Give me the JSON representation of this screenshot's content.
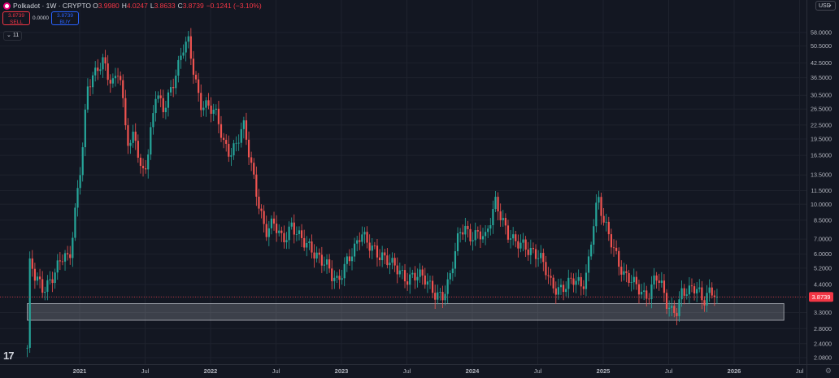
{
  "header": {
    "symbol": "Polkadot · 1W · CRYPTO",
    "o_label": "O",
    "o": "3.9980",
    "h_label": "H",
    "h": "4.0247",
    "l_label": "L",
    "l": "3.8633",
    "c_label": "C",
    "c": "3.8739",
    "change": "−0.1241 (−3.10%)"
  },
  "trade": {
    "sell_price": "3.8739",
    "sell_label": "SELL",
    "spread": "0.0000",
    "buy_price": "3.8739",
    "buy_label": "BUY"
  },
  "indicator_toggle": "11",
  "currency": "USD",
  "logo_text": "17",
  "colors": {
    "background": "#131722",
    "up": "#26a69a",
    "down": "#ef5350",
    "price_badge": "#f23645",
    "zone_fill": "#d1d4dc"
  },
  "chart_data": {
    "type": "candlestick",
    "scale": "log",
    "grid": true,
    "price_axis_ticks": [
      58.0,
      50.5,
      42.5,
      36.5,
      30.5,
      26.5,
      22.5,
      19.5,
      16.5,
      13.5,
      11.5,
      10.0,
      8.5,
      7.0,
      6.0,
      5.2,
      4.4,
      3.8739,
      3.3,
      2.8,
      2.4,
      2.08
    ],
    "price_axis_labels": [
      "58.0000",
      "50.5000",
      "42.5000",
      "36.5000",
      "30.5000",
      "26.5000",
      "22.5000",
      "19.5000",
      "16.5000",
      "13.5000",
      "11.5000",
      "10.0000",
      "8.5000",
      "7.0000",
      "6.0000",
      "5.2000",
      "4.4000",
      "3.8739",
      "3.3000",
      "2.8000",
      "2.4000",
      "2.0800"
    ],
    "current_price": "3.8739",
    "time_axis": [
      {
        "label": "2021",
        "t": 2021.0
      },
      {
        "label": "Jul",
        "t": 2021.5
      },
      {
        "label": "2022",
        "t": 2022.0
      },
      {
        "label": "Jul",
        "t": 2022.5
      },
      {
        "label": "2023",
        "t": 2023.0
      },
      {
        "label": "Jul",
        "t": 2023.5
      },
      {
        "label": "2024",
        "t": 2024.0
      },
      {
        "label": "Jul",
        "t": 2024.5
      },
      {
        "label": "2025",
        "t": 2025.0
      },
      {
        "label": "Jul",
        "t": 2025.5
      },
      {
        "label": "2026",
        "t": 2026.0
      },
      {
        "label": "Jul",
        "t": 2026.5
      }
    ],
    "close_path": [
      [
        2020.6,
        2.3
      ],
      [
        2020.62,
        5.5
      ],
      [
        2020.66,
        4.6
      ],
      [
        2020.72,
        4.2
      ],
      [
        2020.8,
        5.0
      ],
      [
        2020.88,
        5.8
      ],
      [
        2020.92,
        5.4
      ],
      [
        2020.97,
        10.0
      ],
      [
        2021.02,
        18.0
      ],
      [
        2021.06,
        33.0
      ],
      [
        2021.12,
        37.0
      ],
      [
        2021.18,
        44.0
      ],
      [
        2021.25,
        35.0
      ],
      [
        2021.3,
        40.0
      ],
      [
        2021.34,
        24.0
      ],
      [
        2021.38,
        17.0
      ],
      [
        2021.42,
        22.0
      ],
      [
        2021.47,
        14.0
      ],
      [
        2021.52,
        16.0
      ],
      [
        2021.58,
        30.0
      ],
      [
        2021.64,
        27.0
      ],
      [
        2021.7,
        34.0
      ],
      [
        2021.75,
        40.0
      ],
      [
        2021.79,
        48.0
      ],
      [
        2021.83,
        52.0
      ],
      [
        2021.87,
        40.0
      ],
      [
        2021.92,
        29.0
      ],
      [
        2021.98,
        27.0
      ],
      [
        2022.05,
        24.0
      ],
      [
        2022.1,
        19.0
      ],
      [
        2022.15,
        17.5
      ],
      [
        2022.2,
        18.5
      ],
      [
        2022.25,
        22.0
      ],
      [
        2022.3,
        16.0
      ],
      [
        2022.36,
        11.0
      ],
      [
        2022.42,
        7.5
      ],
      [
        2022.48,
        8.0
      ],
      [
        2022.55,
        7.0
      ],
      [
        2022.62,
        8.3
      ],
      [
        2022.68,
        7.0
      ],
      [
        2022.72,
        6.5
      ],
      [
        2022.78,
        6.3
      ],
      [
        2022.84,
        5.9
      ],
      [
        2022.88,
        5.5
      ],
      [
        2022.93,
        4.6
      ],
      [
        2022.97,
        4.4
      ],
      [
        2023.05,
        6.0
      ],
      [
        2023.1,
        6.4
      ],
      [
        2023.15,
        7.2
      ],
      [
        2023.2,
        6.6
      ],
      [
        2023.26,
        6.4
      ],
      [
        2023.32,
        5.9
      ],
      [
        2023.38,
        5.3
      ],
      [
        2023.44,
        5.0
      ],
      [
        2023.5,
        4.8
      ],
      [
        2023.55,
        4.9
      ],
      [
        2023.6,
        4.7
      ],
      [
        2023.66,
        4.4
      ],
      [
        2023.72,
        4.1
      ],
      [
        2023.78,
        4.0
      ],
      [
        2023.82,
        4.4
      ],
      [
        2023.86,
        5.6
      ],
      [
        2023.9,
        7.5
      ],
      [
        2023.94,
        8.2
      ],
      [
        2023.98,
        7.4
      ],
      [
        2024.05,
        7.2
      ],
      [
        2024.1,
        6.9
      ],
      [
        2024.14,
        8.7
      ],
      [
        2024.18,
        10.8
      ],
      [
        2024.22,
        9.0
      ],
      [
        2024.27,
        7.2
      ],
      [
        2024.32,
        6.6
      ],
      [
        2024.4,
        6.8
      ],
      [
        2024.46,
        6.2
      ],
      [
        2024.52,
        5.6
      ],
      [
        2024.6,
        4.5
      ],
      [
        2024.66,
        4.3
      ],
      [
        2024.72,
        4.3
      ],
      [
        2024.78,
        4.5
      ],
      [
        2024.84,
        4.4
      ],
      [
        2024.88,
        5.3
      ],
      [
        2024.92,
        8.0
      ],
      [
        2024.96,
        10.5
      ],
      [
        2025.0,
        8.2
      ],
      [
        2025.06,
        7.0
      ],
      [
        2025.1,
        6.1
      ],
      [
        2025.16,
        4.8
      ],
      [
        2025.22,
        4.4
      ],
      [
        2025.28,
        4.2
      ],
      [
        2025.32,
        4.0
      ],
      [
        2025.36,
        4.2
      ],
      [
        2025.4,
        4.8
      ],
      [
        2025.44,
        4.3
      ],
      [
        2025.48,
        3.6
      ],
      [
        2025.52,
        3.4
      ],
      [
        2025.56,
        3.5
      ],
      [
        2025.6,
        4.1
      ],
      [
        2025.66,
        4.0
      ],
      [
        2025.72,
        4.2
      ],
      [
        2025.76,
        3.8
      ],
      [
        2025.8,
        4.2
      ],
      [
        2025.84,
        4.1
      ],
      [
        2025.87,
        3.87
      ]
    ],
    "support_zone": {
      "from": 3.05,
      "to": 3.62,
      "start_t": 2020.6,
      "end_t": 2026.38
    }
  }
}
